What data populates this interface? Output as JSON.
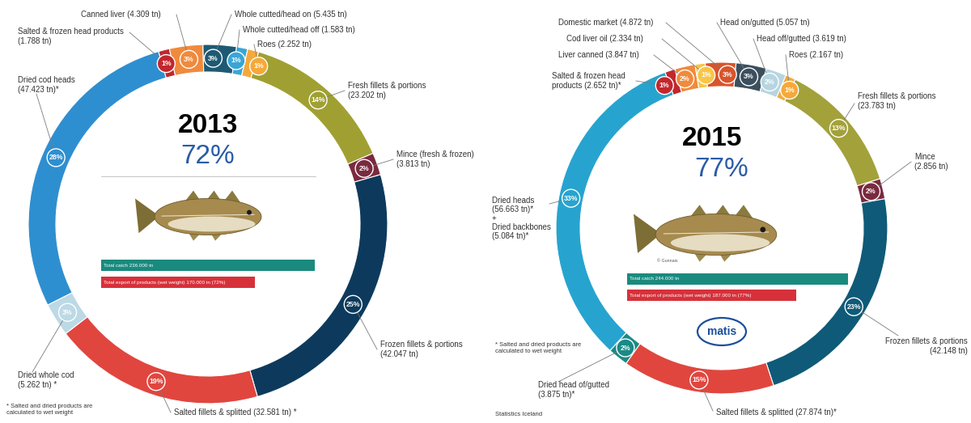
{
  "chart_data": [
    {
      "type": "pie",
      "title": "2013",
      "subtitle": "72%",
      "categories": [
        "Salted & frozen head products\n(1.788 tn)",
        "Canned liver (4.309 tn)",
        "Whole cutted/head on (5.435 tn)",
        "Whole cutted/head off (1.583 tn)",
        "Roes (2.252 tn)",
        "Fresh fillets & portions\n(23.202 tn)",
        "Mince (fresh & frozen)\n(3.813 tn)",
        "Frozen fillets & portions\n(42.047 tn)",
        "Salted fillets & splitted (32.581 tn) *",
        "Dried whole cod\n(5.262 tn) *",
        "Dried cod heads\n(47.423 tn)*"
      ],
      "values": [
        1,
        3,
        3,
        1,
        1,
        14,
        2,
        25,
        19,
        3,
        28
      ],
      "value_labels": [
        "1%",
        "3%",
        "3%",
        "1%",
        "1%",
        "14%",
        "2%",
        "25%",
        "19%",
        "3%",
        "28%"
      ],
      "colors": [
        "#c1272d",
        "#f08a3c",
        "#1e5a73",
        "#3aa6d5",
        "#f5a93a",
        "#a0a032",
        "#7a2a3f",
        "#0d3a5c",
        "#e0463e",
        "#bcd9e6",
        "#2e8fd0"
      ],
      "data_labels": true,
      "totals": [
        {
          "label": "Total catch 236.000 tn",
          "value": 236000,
          "color": "#1a8a7e"
        },
        {
          "label": "Total export of products (wet weight) 170.000 tn (72%)",
          "value": 170000,
          "color": "#d6313a"
        }
      ],
      "footnote": "* Salted and dried products are\ncalculated to wet weight"
    },
    {
      "type": "pie",
      "title": "2015",
      "subtitle": "77%",
      "categories": [
        "Salted & frozen head\nproducts (2.652 tn)*",
        "Liver canned (3.847 tn)",
        "Cod liver oil (2.334 tn)",
        "Domestic market (4.872 tn)",
        "Head on/gutted (5.057 tn)",
        "Head off/gutted (3.619 tn)",
        "Roes (2.167 tn)",
        "Fresh fillets & portions\n(23.783 tn)",
        "Mince\n(2.856 tn)",
        "Frozen fillets & portions\n(42.148 tn)",
        "Salted fillets & splitted (27.874 tn)*",
        "Dried head of/gutted\n(3.875 tn)*",
        "Dried heads\n(56.663 tn)*\n+\nDried backbones\n(5.084 tn)*"
      ],
      "values": [
        1,
        2,
        1,
        3,
        3,
        2,
        1,
        13,
        2,
        23,
        15,
        2,
        33
      ],
      "value_labels": [
        "1%",
        "2%",
        "1%",
        "3%",
        "3%",
        "2%",
        "1%",
        "13%",
        "2%",
        "23%",
        "15%",
        "2%",
        "33%"
      ],
      "colors": [
        "#c1272d",
        "#f08a3c",
        "#f8c546",
        "#d9542c",
        "#3b4f5e",
        "#b7d5e0",
        "#f5a93a",
        "#a3a13a",
        "#7a2a3f",
        "#0f5a78",
        "#e0463e",
        "#1a8a86",
        "#26a4cf"
      ],
      "data_labels": true,
      "totals": [
        {
          "label": "Total catch 244.000 tn",
          "value": 244000,
          "color": "#1a8a7e"
        },
        {
          "label": "Total export of products (wet weight) 187.000 tn (77%)",
          "value": 187000,
          "color": "#d6313a"
        }
      ],
      "footnote": "* Salted and dried products are\ncalculated to wet weight",
      "source": "Statistics Iceland",
      "logo": "matis",
      "credit": "© Gunnais"
    }
  ]
}
